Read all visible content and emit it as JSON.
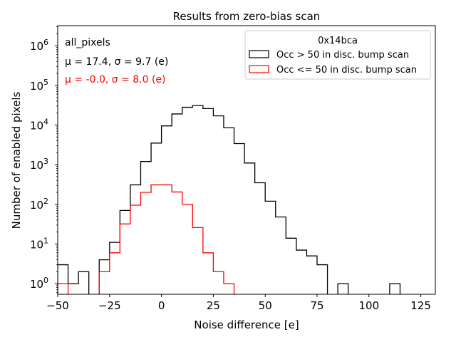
{
  "chart_data": {
    "type": "histogram-step",
    "title": "Results from zero-bias scan",
    "xlabel": "Noise difference [e]",
    "ylabel": "Number of enabled pixels",
    "yscale": "log",
    "xlim": [
      -50,
      132
    ],
    "ylim": [
      0.54,
      3200000
    ],
    "xticks": [
      -50,
      -25,
      0,
      25,
      50,
      75,
      100,
      125
    ],
    "xtick_labels": [
      "−50",
      "−25",
      "0",
      "25",
      "50",
      "75",
      "100",
      "125"
    ],
    "yticks": [
      1,
      10,
      100,
      1000,
      10000,
      100000,
      1000000
    ],
    "ytick_labels": [
      {
        "base": "10",
        "exp": "0"
      },
      {
        "base": "10",
        "exp": "1"
      },
      {
        "base": "10",
        "exp": "2"
      },
      {
        "base": "10",
        "exp": "3"
      },
      {
        "base": "10",
        "exp": "4"
      },
      {
        "base": "10",
        "exp": "5"
      },
      {
        "base": "10",
        "exp": "6"
      }
    ],
    "bin_edges_start": -50,
    "bin_width": 5,
    "series": [
      {
        "name": "Occ > 50 in disc. bump scan",
        "color": "#000000",
        "values": [
          3,
          1,
          2,
          0,
          4,
          11,
          70,
          310,
          1200,
          3500,
          9500,
          19000,
          28000,
          31000,
          26000,
          17000,
          8500,
          3400,
          1100,
          350,
          120,
          48,
          14,
          7,
          5,
          3,
          0,
          1,
          0,
          0,
          0,
          0,
          1
        ]
      },
      {
        "name": "Occ <= 50 in disc. bump scan",
        "color": "#ff0000",
        "values": [
          1,
          0,
          0,
          0,
          2,
          6,
          32,
          95,
          200,
          310,
          310,
          205,
          100,
          26,
          6,
          2,
          1
        ]
      }
    ],
    "legend": {
      "title": "0x14bca",
      "placement": "top-right"
    },
    "annotations": [
      {
        "text": "all_pixels",
        "color": "#000000"
      },
      {
        "text": "μ = 17.4, σ = 9.7 (e)",
        "color": "#000000"
      },
      {
        "text": "μ = -0.0, σ = 8.0 (e)",
        "color": "#ff0000"
      }
    ],
    "grid": false
  }
}
